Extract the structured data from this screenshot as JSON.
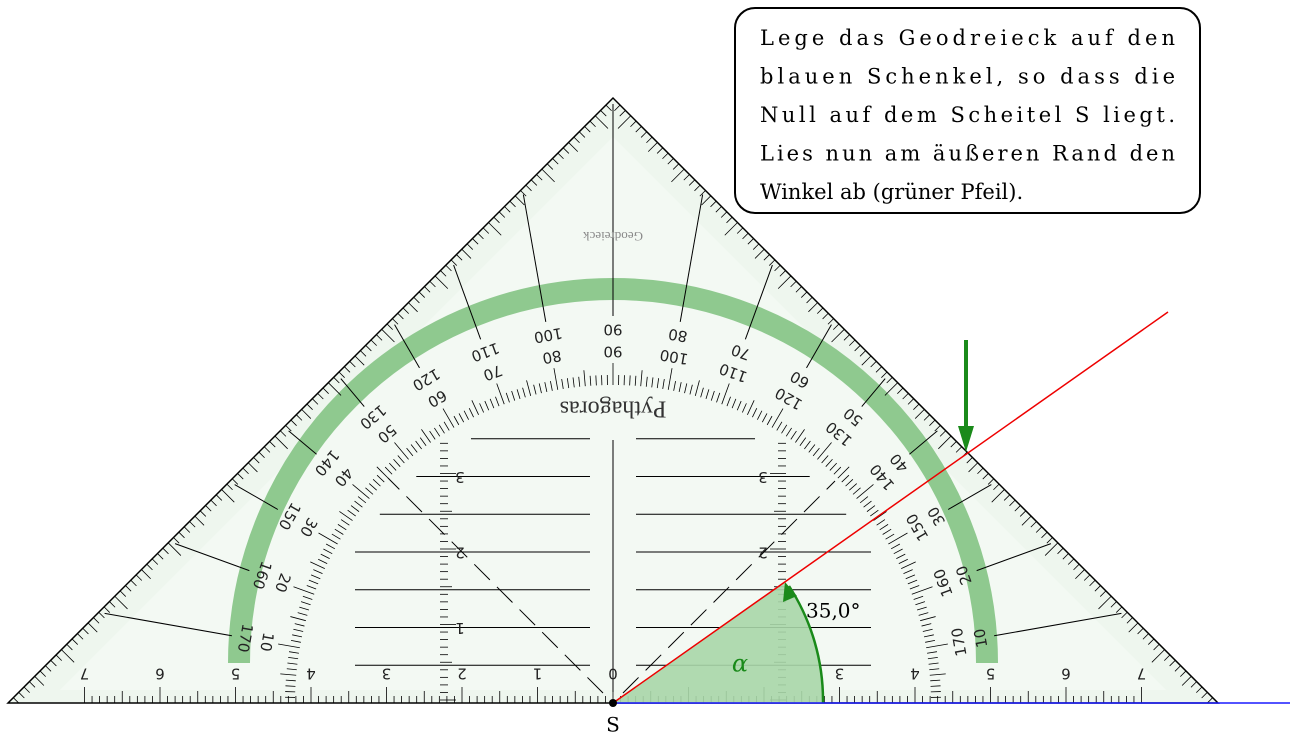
{
  "callout": {
    "lines": [
      "Lege das Geodreieck auf den",
      "blauen Schenkel, so dass die",
      "Null auf dem Scheitel S liegt.",
      "Lies nun am äußeren Rand den",
      "Winkel ab (grüner Pfeil)."
    ]
  },
  "vertex_label": "S",
  "angle_label": "α",
  "angle_value": "35,0°",
  "set_square": {
    "brand": "Geodreieck",
    "name": "Pythagoras",
    "outer_scale": [
      10,
      20,
      30,
      40,
      50,
      60,
      70,
      80,
      90,
      100,
      110,
      120,
      130,
      140,
      150,
      160,
      170
    ],
    "inner_scale": [
      170,
      160,
      150,
      140,
      130,
      120,
      110,
      100,
      90,
      80,
      70,
      60,
      50,
      40,
      30,
      20,
      10
    ],
    "base_center": 0,
    "base_left": [
      1,
      2,
      3,
      4,
      5,
      6,
      7
    ],
    "base_right": [
      3,
      4,
      5,
      6,
      7
    ],
    "vertical_left": [
      1,
      2,
      3
    ],
    "vertical_right": [
      2,
      3
    ]
  }
}
